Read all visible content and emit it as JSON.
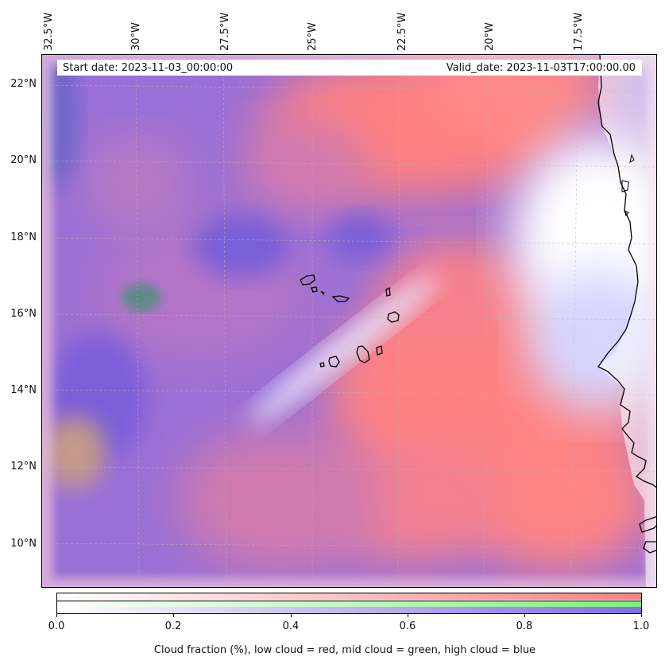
{
  "map": {
    "start_date": "Start date: 2023-11-03_00:00:00",
    "valid_date": "Valid_date: 2023-11-03T17:00:00.00",
    "lon_labels": [
      "32.5°W",
      "30°W",
      "27.5°W",
      "25°W",
      "22.5°W",
      "20°W",
      "17.5°W"
    ],
    "lat_labels": [
      "22°N",
      "20°N",
      "18°N",
      "16°N",
      "14°N",
      "12°N",
      "10°N"
    ],
    "extent": {
      "lon_min": -32.6,
      "lon_max": -15.3,
      "lat_min": 8.8,
      "lat_max": 22.8
    }
  },
  "colorbar": {
    "tick_labels": [
      "0.0",
      "0.2",
      "0.4",
      "0.6",
      "0.8",
      "1.0"
    ],
    "caption": "Cloud fraction (%), low cloud = red, mid cloud = green, high cloud = blue",
    "colors": {
      "low": "#ff7f7f",
      "mid": "#7fef7f",
      "high": "#7f6fe0"
    }
  },
  "colors": {
    "land": "#ffffff",
    "coast": "#000000",
    "grid": "#b8b8b8"
  }
}
